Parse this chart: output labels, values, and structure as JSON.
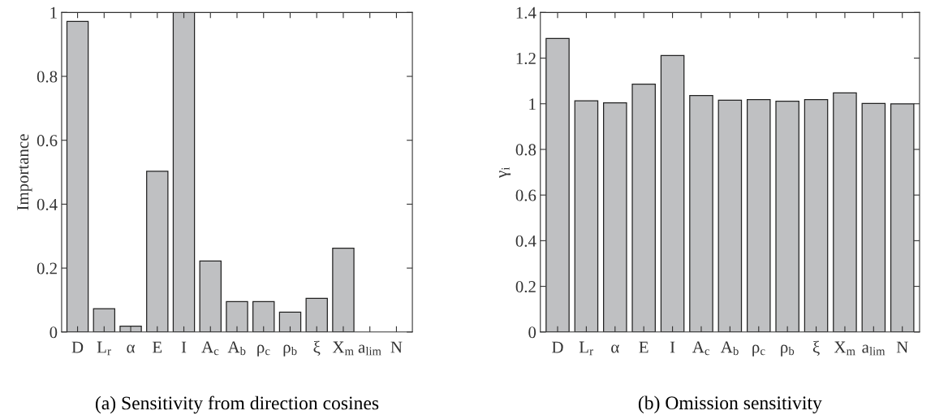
{
  "chart_data": [
    {
      "type": "bar",
      "title": "(a) Sensitivity from direction cosines",
      "ylabel": "Importance",
      "categories": [
        "D",
        "L$_{r}$",
        "α",
        "E",
        "I",
        "A$_{c}$",
        "A$_{b}$",
        "ρ$_{c}$",
        "ρ$_{b}$",
        "ξ",
        "X$_{m}$",
        "a$_{lim}$",
        "N"
      ],
      "values": [
        0.972,
        0.073,
        0.018,
        0.503,
        1.0,
        0.222,
        0.095,
        0.095,
        0.062,
        0.105,
        0.262,
        null,
        null
      ],
      "color": "#bfc0c2",
      "ylim": [
        0,
        1
      ],
      "yticks": [
        0,
        0.2,
        0.4,
        0.6,
        0.8,
        1
      ],
      "grid": false,
      "legend": false
    },
    {
      "type": "bar",
      "title": "(b) Omission sensitivity",
      "ylabel": "γ$_{i}$",
      "categories": [
        "D",
        "L$_{r}$",
        "α",
        "E",
        "I",
        "A$_{c}$",
        "A$_{b}$",
        "ρ$_{c}$",
        "ρ$_{b}$",
        "ξ",
        "X$_{m}$",
        "a$_{lim}$",
        "N"
      ],
      "values": [
        1.286,
        1.013,
        1.004,
        1.086,
        1.211,
        1.036,
        1.016,
        1.018,
        1.011,
        1.018,
        1.048,
        1.001,
        1.0
      ],
      "color": "#bfc0c2",
      "ylim": [
        0,
        1.4
      ],
      "yticks": [
        0,
        0.2,
        0.4,
        0.6,
        0.8,
        1,
        1.2,
        1.4
      ],
      "grid": false,
      "legend": false
    }
  ]
}
